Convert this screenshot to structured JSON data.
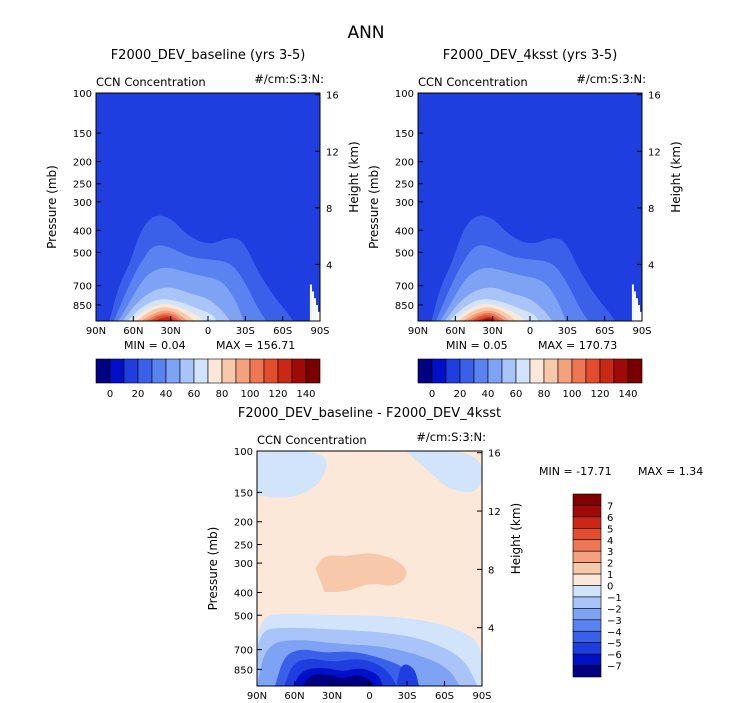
{
  "figure_title": "ANN",
  "chart_data": [
    {
      "type": "heatmap",
      "title": "F2000_DEV_baseline (yrs 3-5)",
      "variable": "CCN Concentration",
      "units": "#/cm:S:3:N:",
      "xlabel": "",
      "ylabel": "Pressure (mb)",
      "ylabel_right": "Height (km)",
      "x_ticks": [
        "90N",
        "60N",
        "30N",
        "0",
        "30S",
        "60S",
        "90S"
      ],
      "y_ticks": [
        "100",
        "150",
        "200",
        "250",
        "300",
        "400",
        "500",
        "700",
        "850"
      ],
      "y_ticks_right": [
        "16",
        "12",
        "8",
        "4"
      ],
      "min_label": "MIN =   0.04",
      "max_label": "MAX = 156.71",
      "min": 0.04,
      "max": 156.71,
      "colorbar_labels": [
        "0",
        "20",
        "40",
        "60",
        "80",
        "100",
        "120",
        "140"
      ],
      "colorbar_levels": [
        -10,
        0,
        10,
        20,
        30,
        40,
        50,
        60,
        70,
        80,
        90,
        100,
        110,
        120,
        130,
        140
      ],
      "peak_latitude": "30N",
      "peak_pressure_mb": 850
    },
    {
      "type": "heatmap",
      "title": "F2000_DEV_4ksst (yrs 3-5)",
      "variable": "CCN Concentration",
      "units": "#/cm:S:3:N:",
      "xlabel": "",
      "ylabel": "Pressure (mb)",
      "ylabel_right": "Height (km)",
      "x_ticks": [
        "90N",
        "60N",
        "30N",
        "0",
        "30S",
        "60S",
        "90S"
      ],
      "y_ticks": [
        "100",
        "150",
        "200",
        "250",
        "300",
        "400",
        "500",
        "700",
        "850"
      ],
      "y_ticks_right": [
        "16",
        "12",
        "8",
        "4"
      ],
      "min_label": "MIN =   0.05",
      "max_label": "MAX = 170.73",
      "min": 0.05,
      "max": 170.73,
      "colorbar_labels": [
        "0",
        "20",
        "40",
        "60",
        "80",
        "100",
        "120",
        "140"
      ],
      "colorbar_levels": [
        -10,
        0,
        10,
        20,
        30,
        40,
        50,
        60,
        70,
        80,
        90,
        100,
        110,
        120,
        130,
        140
      ],
      "peak_latitude": "30N",
      "peak_pressure_mb": 850
    },
    {
      "type": "heatmap",
      "title": "F2000_DEV_baseline - F2000_DEV_4ksst",
      "variable": "CCN Concentration",
      "units": "#/cm:S:3:N:",
      "xlabel": "",
      "ylabel": "Pressure (mb)",
      "ylabel_right": "Height (km)",
      "x_ticks": [
        "90N",
        "60N",
        "30N",
        "0",
        "30S",
        "60S",
        "90S"
      ],
      "y_ticks": [
        "100",
        "150",
        "200",
        "250",
        "300",
        "400",
        "500",
        "700",
        "850"
      ],
      "y_ticks_right": [
        "16",
        "12",
        "8",
        "4"
      ],
      "min_label": "MIN = -17.71",
      "max_label": "MAX =   1.34",
      "min": -17.71,
      "max": 1.34,
      "colorbar_labels": [
        "7",
        "6",
        "5",
        "4",
        "3",
        "2",
        "1",
        "0",
        "−1",
        "−2",
        "−3",
        "−4",
        "−5",
        "−6",
        "−7"
      ]
    }
  ],
  "colors": {
    "abs_scale": [
      "#000080",
      "#0010c8",
      "#1e3ee0",
      "#3a60ea",
      "#5a82f0",
      "#7ea2f4",
      "#a8c4f8",
      "#d2e4fc",
      "#fce8d8",
      "#f8c8aa",
      "#f4a27e",
      "#ee7652",
      "#e44c2e",
      "#c82814",
      "#a00a06",
      "#780000"
    ],
    "diff_scale": [
      "#800000",
      "#a00a06",
      "#c82814",
      "#e44c2e",
      "#ee7652",
      "#f4a27e",
      "#f8c8aa",
      "#fce8d8",
      "#d2e4fc",
      "#a8c4f8",
      "#7ea2f4",
      "#5a82f0",
      "#3a60ea",
      "#1e3ee0",
      "#0010c8",
      "#000080"
    ]
  }
}
